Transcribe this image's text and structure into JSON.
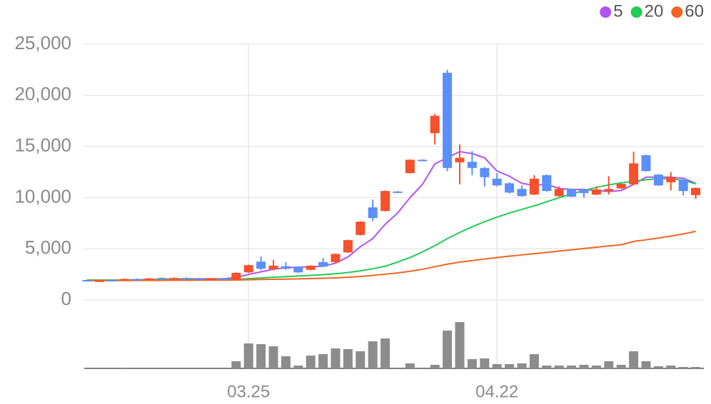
{
  "chart_data": {
    "type": "candlestick",
    "categories": [
      null,
      null,
      null,
      null,
      null,
      null,
      null,
      null,
      null,
      null,
      null,
      null,
      null,
      "03.25",
      null,
      null,
      null,
      null,
      null,
      null,
      null,
      null,
      null,
      null,
      null,
      null,
      null,
      null,
      null,
      null,
      null,
      null,
      null,
      "04.22",
      null,
      null,
      null,
      null,
      null,
      null,
      null,
      null,
      null,
      null,
      null,
      null,
      null,
      null,
      null,
      null
    ],
    "open": [
      1950,
      1850,
      1950,
      1950,
      2050,
      2000,
      2150,
      2050,
      2150,
      2100,
      2000,
      2100,
      2000,
      2700,
      3750,
      3000,
      3300,
      3250,
      2950,
      3700,
      3700,
      4650,
      6350,
      9050,
      8700,
      10600,
      12400,
      13700,
      16300,
      22200,
      13450,
      13500,
      12900,
      11850,
      11400,
      10850,
      10300,
      12200,
      10150,
      10850,
      10800,
      10300,
      10650,
      10900,
      11300,
      14150,
      12250,
      11500,
      11750,
      10250
    ],
    "high": [
      1980,
      1950,
      1980,
      2100,
      2100,
      2150,
      2200,
      2200,
      2200,
      2150,
      2150,
      2150,
      2700,
      3450,
      4250,
      3900,
      3700,
      3300,
      3400,
      4100,
      4550,
      5900,
      7700,
      9800,
      10700,
      10650,
      13750,
      13750,
      18200,
      22500,
      15200,
      14550,
      13000,
      12400,
      11500,
      11200,
      12200,
      12250,
      11100,
      10900,
      10850,
      11100,
      12100,
      11400,
      14500,
      14200,
      12300,
      12500,
      11800,
      11000
    ],
    "low": [
      1920,
      1820,
      1880,
      1930,
      1980,
      1980,
      2030,
      2030,
      2020,
      1980,
      1980,
      1980,
      1980,
      2650,
      2900,
      2900,
      2950,
      2650,
      2900,
      3200,
      3650,
      4600,
      6300,
      7700,
      8650,
      10450,
      12350,
      13600,
      15200,
      12600,
      11300,
      12200,
      11100,
      11100,
      10400,
      10100,
      10250,
      10600,
      10100,
      10050,
      10000,
      10250,
      10300,
      10850,
      11250,
      12550,
      11150,
      10700,
      10200,
      9900
    ],
    "close": [
      1940,
      1900,
      1900,
      2050,
      2000,
      2100,
      2050,
      2150,
      2050,
      2000,
      2100,
      2000,
      2650,
      3400,
      3050,
      3350,
      3050,
      2700,
      3350,
      3250,
      4500,
      5850,
      7650,
      8000,
      10650,
      10500,
      13700,
      13650,
      18000,
      12900,
      13900,
      12900,
      12000,
      11200,
      10500,
      10150,
      11850,
      10650,
      10850,
      10100,
      10450,
      10800,
      10850,
      11350,
      13350,
      12600,
      11200,
      12000,
      10650,
      10950
    ],
    "up_color": "#f4512c",
    "down_color": "#5b8ff9",
    "series": [
      {
        "name": "5",
        "color": "#b054f5",
        "values": [
          1950,
          1940,
          1930,
          1950,
          1980,
          2000,
          2020,
          2050,
          2060,
          2070,
          2070,
          2060,
          2200,
          2500,
          2750,
          3000,
          3150,
          3200,
          3250,
          3300,
          3600,
          4200,
          5200,
          6000,
          7400,
          8500,
          10000,
          11300,
          13300,
          13900,
          14500,
          14300,
          13900,
          12600,
          12100,
          11400,
          11200,
          11300,
          10900,
          10800,
          10800,
          10700,
          10600,
          10700,
          11300,
          12000,
          12000,
          12000,
          11900,
          11400
        ]
      },
      {
        "name": "20",
        "color": "#22cc55",
        "values": [
          1950,
          1950,
          1940,
          1940,
          1950,
          1950,
          1960,
          1970,
          1980,
          1990,
          1990,
          2000,
          2020,
          2080,
          2150,
          2220,
          2280,
          2340,
          2400,
          2470,
          2560,
          2680,
          2850,
          3050,
          3300,
          3700,
          4150,
          4700,
          5300,
          6000,
          6600,
          7150,
          7650,
          8100,
          8500,
          8850,
          9200,
          9600,
          10000,
          10350,
          10700,
          11000,
          11250,
          11450,
          11600,
          11750,
          11850,
          11850,
          11700,
          11350
        ]
      },
      {
        "name": "60",
        "color": "#f26522",
        "values": [
          1900,
          1900,
          1900,
          1905,
          1910,
          1910,
          1915,
          1920,
          1925,
          1930,
          1935,
          1940,
          1950,
          1980,
          2000,
          2020,
          2040,
          2060,
          2090,
          2120,
          2160,
          2220,
          2300,
          2400,
          2520,
          2650,
          2800,
          3000,
          3250,
          3500,
          3700,
          3850,
          4000,
          4150,
          4280,
          4400,
          4530,
          4650,
          4780,
          4900,
          5030,
          5150,
          5280,
          5400,
          5720,
          5880,
          6050,
          6250,
          6450,
          6700
        ]
      }
    ],
    "volume": [
      0,
      0,
      0,
      1,
      0,
      0,
      0,
      0,
      0,
      0,
      0,
      0,
      10,
      35,
      34,
      31,
      17,
      4,
      18,
      20,
      28,
      27,
      24,
      38,
      42,
      0,
      7,
      0,
      5,
      53,
      65,
      13,
      14,
      6,
      6,
      7,
      20,
      4,
      4,
      4,
      5,
      4,
      10,
      5,
      24,
      10,
      3,
      4,
      2,
      2
    ],
    "volume_color": "#8c8c8c",
    "ylim": [
      0,
      25000
    ],
    "yticks": [
      0,
      {
        "value": 5000,
        "label": "5,000"
      },
      {
        "value": 10000,
        "label": "10,000"
      },
      {
        "value": 15000,
        "label": "15,000"
      },
      {
        "value": 20000,
        "label": "20,000"
      },
      {
        "value": 25000,
        "label": "25,000"
      }
    ],
    "grid": true,
    "legend": "top-right"
  }
}
